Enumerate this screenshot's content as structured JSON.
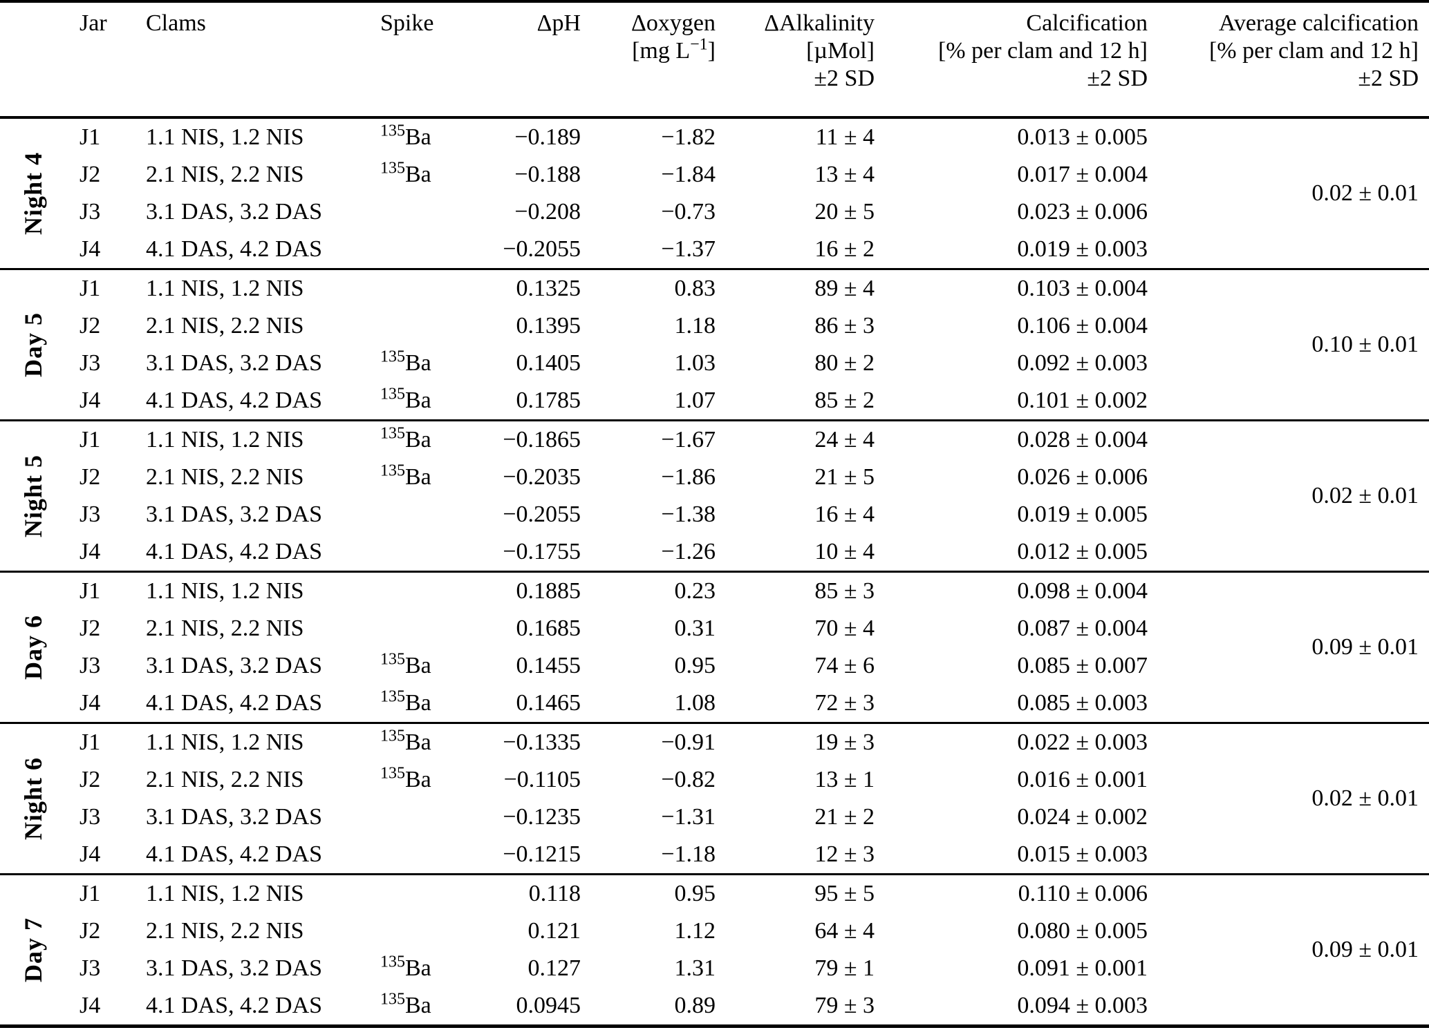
{
  "table": {
    "header": {
      "jar": "Jar",
      "clams": "Clams",
      "spike": "Spike",
      "delta_ph": "ΔpH",
      "delta_oxygen": "Δoxygen",
      "delta_oxygen_unit_pre": "[mg L",
      "delta_oxygen_unit_sup": "−1",
      "delta_oxygen_unit_post": "]",
      "delta_alkalinity": "ΔAlkalinity",
      "delta_alkalinity_unit": "[µMol]",
      "delta_alkalinity_sd": "±2 SD",
      "calcification": "Calcification",
      "calcification_unit": "[% per clam and 12 h]",
      "calcification_sd": "±2 SD",
      "average_calcification": "Average calcification",
      "average_calcification_unit": "[% per clam and 12 h]",
      "average_calcification_sd": "±2 SD"
    },
    "blocks": [
      {
        "period": "Night 4",
        "average": "0.02 ± 0.01",
        "rows": [
          {
            "jar": "J1",
            "clams": "1.1 NIS, 1.2 NIS",
            "spike_sup": "135",
            "spike_base": "Ba",
            "delta_ph": "−0.189",
            "delta_oxygen": "−1.82",
            "delta_alkalinity": "11 ± 4",
            "calcification": "0.013 ± 0.005"
          },
          {
            "jar": "J2",
            "clams": "2.1 NIS, 2.2 NIS",
            "spike_sup": "135",
            "spike_base": "Ba",
            "delta_ph": "−0.188",
            "delta_oxygen": "−1.84",
            "delta_alkalinity": "13 ± 4",
            "calcification": "0.017 ± 0.004"
          },
          {
            "jar": "J3",
            "clams": "3.1 DAS, 3.2 DAS",
            "spike_sup": "",
            "spike_base": "",
            "delta_ph": "−0.208",
            "delta_oxygen": "−0.73",
            "delta_alkalinity": "20 ± 5",
            "calcification": "0.023 ± 0.006"
          },
          {
            "jar": "J4",
            "clams": "4.1 DAS, 4.2 DAS",
            "spike_sup": "",
            "spike_base": "",
            "delta_ph": "−0.2055",
            "delta_oxygen": "−1.37",
            "delta_alkalinity": "16 ± 2",
            "calcification": "0.019 ± 0.003"
          }
        ]
      },
      {
        "period": "Day 5",
        "average": "0.10 ± 0.01",
        "rows": [
          {
            "jar": "J1",
            "clams": "1.1 NIS, 1.2 NIS",
            "spike_sup": "",
            "spike_base": "",
            "delta_ph": "0.1325",
            "delta_oxygen": "0.83",
            "delta_alkalinity": "89 ± 4",
            "calcification": "0.103 ± 0.004"
          },
          {
            "jar": "J2",
            "clams": "2.1 NIS, 2.2 NIS",
            "spike_sup": "",
            "spike_base": "",
            "delta_ph": "0.1395",
            "delta_oxygen": "1.18",
            "delta_alkalinity": "86 ± 3",
            "calcification": "0.106 ± 0.004"
          },
          {
            "jar": "J3",
            "clams": "3.1 DAS, 3.2 DAS",
            "spike_sup": "135",
            "spike_base": "Ba",
            "delta_ph": "0.1405",
            "delta_oxygen": "1.03",
            "delta_alkalinity": "80 ± 2",
            "calcification": "0.092 ± 0.003"
          },
          {
            "jar": "J4",
            "clams": "4.1 DAS, 4.2 DAS",
            "spike_sup": "135",
            "spike_base": "Ba",
            "delta_ph": "0.1785",
            "delta_oxygen": "1.07",
            "delta_alkalinity": "85 ± 2",
            "calcification": "0.101 ± 0.002"
          }
        ]
      },
      {
        "period": "Night 5",
        "average": "0.02 ± 0.01",
        "rows": [
          {
            "jar": "J1",
            "clams": "1.1 NIS, 1.2 NIS",
            "spike_sup": "135",
            "spike_base": "Ba",
            "delta_ph": "−0.1865",
            "delta_oxygen": "−1.67",
            "delta_alkalinity": "24 ± 4",
            "calcification": "0.028 ± 0.004"
          },
          {
            "jar": "J2",
            "clams": "2.1 NIS, 2.2 NIS",
            "spike_sup": "135",
            "spike_base": "Ba",
            "delta_ph": "−0.2035",
            "delta_oxygen": "−1.86",
            "delta_alkalinity": "21 ± 5",
            "calcification": "0.026 ± 0.006"
          },
          {
            "jar": "J3",
            "clams": "3.1 DAS, 3.2 DAS",
            "spike_sup": "",
            "spike_base": "",
            "delta_ph": "−0.2055",
            "delta_oxygen": "−1.38",
            "delta_alkalinity": "16 ± 4",
            "calcification": "0.019 ± 0.005"
          },
          {
            "jar": "J4",
            "clams": "4.1 DAS, 4.2 DAS",
            "spike_sup": "",
            "spike_base": "",
            "delta_ph": "−0.1755",
            "delta_oxygen": "−1.26",
            "delta_alkalinity": "10 ± 4",
            "calcification": "0.012 ± 0.005"
          }
        ]
      },
      {
        "period": "Day 6",
        "average": "0.09 ± 0.01",
        "rows": [
          {
            "jar": "J1",
            "clams": "1.1 NIS, 1.2 NIS",
            "spike_sup": "",
            "spike_base": "",
            "delta_ph": "0.1885",
            "delta_oxygen": "0.23",
            "delta_alkalinity": "85 ± 3",
            "calcification": "0.098 ± 0.004"
          },
          {
            "jar": "J2",
            "clams": "2.1 NIS, 2.2 NIS",
            "spike_sup": "",
            "spike_base": "",
            "delta_ph": "0.1685",
            "delta_oxygen": "0.31",
            "delta_alkalinity": "70 ± 4",
            "calcification": "0.087 ± 0.004"
          },
          {
            "jar": "J3",
            "clams": "3.1 DAS, 3.2 DAS",
            "spike_sup": "135",
            "spike_base": "Ba",
            "delta_ph": "0.1455",
            "delta_oxygen": "0.95",
            "delta_alkalinity": "74 ± 6",
            "calcification": "0.085 ± 0.007"
          },
          {
            "jar": "J4",
            "clams": "4.1 DAS, 4.2 DAS",
            "spike_sup": "135",
            "spike_base": "Ba",
            "delta_ph": "0.1465",
            "delta_oxygen": "1.08",
            "delta_alkalinity": "72 ± 3",
            "calcification": "0.085 ± 0.003"
          }
        ]
      },
      {
        "period": "Night 6",
        "average": "0.02 ± 0.01",
        "rows": [
          {
            "jar": "J1",
            "clams": "1.1 NIS, 1.2 NIS",
            "spike_sup": "135",
            "spike_base": "Ba",
            "delta_ph": "−0.1335",
            "delta_oxygen": "−0.91",
            "delta_alkalinity": "19 ± 3",
            "calcification": "0.022 ± 0.003"
          },
          {
            "jar": "J2",
            "clams": "2.1 NIS, 2.2 NIS",
            "spike_sup": "135",
            "spike_base": "Ba",
            "delta_ph": "−0.1105",
            "delta_oxygen": "−0.82",
            "delta_alkalinity": "13 ± 1",
            "calcification": "0.016 ± 0.001"
          },
          {
            "jar": "J3",
            "clams": "3.1 DAS, 3.2 DAS",
            "spike_sup": "",
            "spike_base": "",
            "delta_ph": "−0.1235",
            "delta_oxygen": "−1.31",
            "delta_alkalinity": "21 ± 2",
            "calcification": "0.024 ± 0.002"
          },
          {
            "jar": "J4",
            "clams": "4.1 DAS, 4.2 DAS",
            "spike_sup": "",
            "spike_base": "",
            "delta_ph": "−0.1215",
            "delta_oxygen": "−1.18",
            "delta_alkalinity": "12 ± 3",
            "calcification": "0.015 ± 0.003"
          }
        ]
      },
      {
        "period": "Day 7",
        "average": "0.09 ± 0.01",
        "rows": [
          {
            "jar": "J1",
            "clams": "1.1 NIS, 1.2 NIS",
            "spike_sup": "",
            "spike_base": "",
            "delta_ph": "0.118",
            "delta_oxygen": "0.95",
            "delta_alkalinity": "95 ± 5",
            "calcification": "0.110 ± 0.006"
          },
          {
            "jar": "J2",
            "clams": "2.1 NIS, 2.2 NIS",
            "spike_sup": "",
            "spike_base": "",
            "delta_ph": "0.121",
            "delta_oxygen": "1.12",
            "delta_alkalinity": "64 ± 4",
            "calcification": "0.080 ± 0.005"
          },
          {
            "jar": "J3",
            "clams": "3.1 DAS, 3.2 DAS",
            "spike_sup": "135",
            "spike_base": "Ba",
            "delta_ph": "0.127",
            "delta_oxygen": "1.31",
            "delta_alkalinity": "79 ± 1",
            "calcification": "0.091 ± 0.001"
          },
          {
            "jar": "J4",
            "clams": "4.1 DAS, 4.2 DAS",
            "spike_sup": "135",
            "spike_base": "Ba",
            "delta_ph": "0.0945",
            "delta_oxygen": "0.89",
            "delta_alkalinity": "79 ± 3",
            "calcification": "0.094 ± 0.003"
          }
        ]
      }
    ]
  }
}
